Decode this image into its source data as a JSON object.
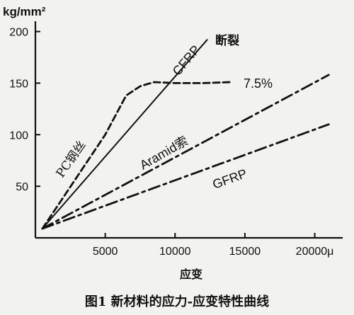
{
  "chart_data": {
    "type": "line",
    "title": "",
    "ylabel": "kg/mm²",
    "xlabel": "应变",
    "x_unit_suffix": "μ",
    "xlim": [
      0,
      22000
    ],
    "ylim": [
      0,
      210
    ],
    "x_ticks": [
      5000,
      10000,
      15000,
      20000
    ],
    "y_ticks": [
      50,
      100,
      150,
      200
    ],
    "grid": false,
    "series": [
      {
        "name": "CFRP",
        "style": "solid",
        "x": [
          500,
          12300
        ],
        "y": [
          9,
          192
        ]
      },
      {
        "name": "PC钢丝",
        "style": "dashed",
        "x": [
          500,
          5000,
          6500,
          7500,
          8500,
          10000,
          12000,
          14000
        ],
        "y": [
          9,
          100,
          138,
          147,
          151,
          150,
          150,
          151
        ]
      },
      {
        "name": "Aramid索",
        "style": "dashdot",
        "x": [
          500,
          21000
        ],
        "y": [
          9,
          158
        ]
      },
      {
        "name": "GFRP",
        "style": "dashdot",
        "x": [
          500,
          21000
        ],
        "y": [
          9,
          110
        ]
      }
    ],
    "annotations": [
      {
        "text": "断裂",
        "target_series": "CFRP"
      },
      {
        "text": "7.5%",
        "target_series": "PC钢丝"
      }
    ],
    "caption": "图1  新材料的应力-应变特性曲线"
  }
}
